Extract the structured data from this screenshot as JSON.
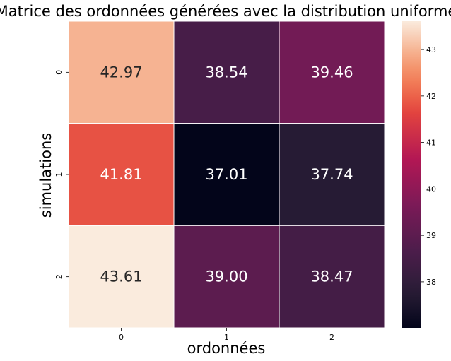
{
  "chart_data": {
    "type": "heatmap",
    "title": "Matrice des ordonnées générées avec la distribution uniforme",
    "xlabel": "ordonnées",
    "ylabel": "simulations",
    "x_tick_labels": [
      "0",
      "1",
      "2"
    ],
    "y_tick_labels": [
      "0",
      "1",
      "2"
    ],
    "values": [
      [
        42.97,
        38.54,
        39.46
      ],
      [
        41.81,
        37.01,
        37.74
      ],
      [
        43.61,
        39.0,
        38.47
      ]
    ],
    "value_labels": [
      [
        "42.97",
        "38.54",
        "39.46"
      ],
      [
        "41.81",
        "37.01",
        "37.74"
      ],
      [
        "43.61",
        "39.00",
        "38.47"
      ]
    ],
    "colorbar": {
      "min": 37.01,
      "max": 43.61,
      "ticks": [
        38,
        39,
        40,
        41,
        42,
        43
      ],
      "tick_labels": [
        "38",
        "39",
        "40",
        "41",
        "42",
        "43"
      ],
      "colormap": "rocket"
    }
  }
}
